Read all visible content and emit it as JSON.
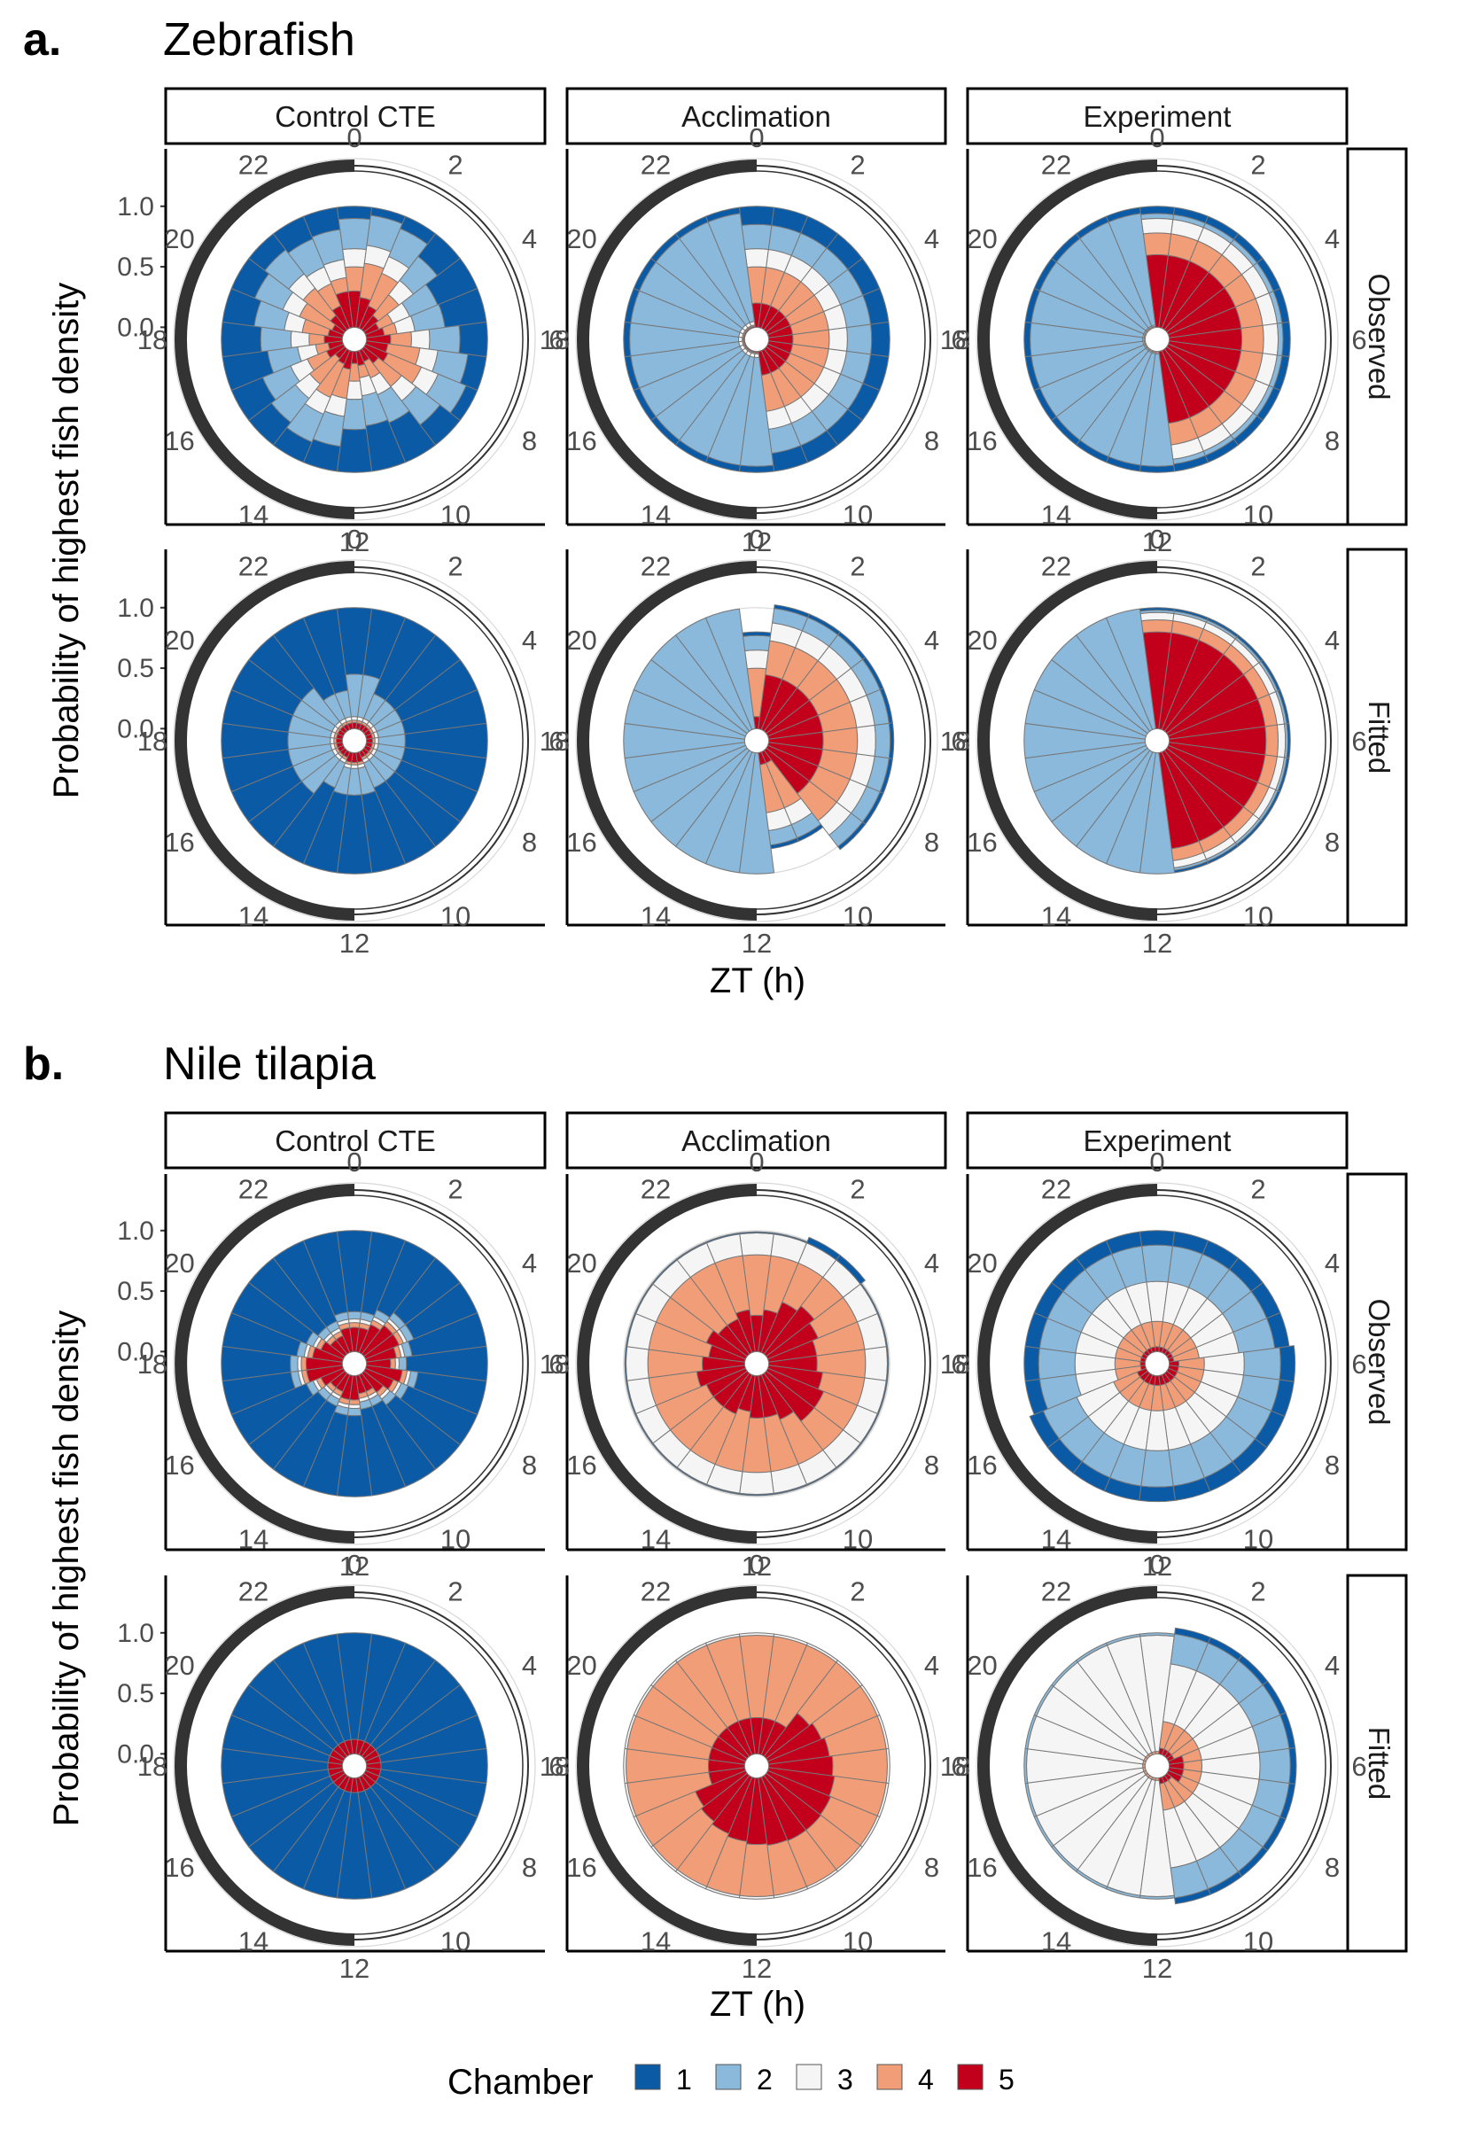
{
  "colors": {
    "chamber": [
      "#0b5aa5",
      "#8ab9db",
      "#f5f5f5",
      "#f19e78",
      "#c3001b"
    ],
    "frame": "#000000",
    "light_dark_band": "#333333",
    "grid": "#d8d8d8"
  },
  "axis_titles": {
    "y": "Probability of highest fish density",
    "x": "ZT (h)"
  },
  "legend": {
    "title": "Chamber",
    "items": [
      "1",
      "2",
      "3",
      "4",
      "5"
    ]
  },
  "chart_data": [
    {
      "type": "polar-stacked-bar",
      "panel": "a.",
      "title": "Zebrafish",
      "columns": [
        "Control CTE",
        "Acclimation",
        "Experiment"
      ],
      "rows": [
        "Observed",
        "Fitted"
      ],
      "theta_ticks": [
        "0",
        "2",
        "4",
        "6",
        "8",
        "10",
        "12",
        "14",
        "16",
        "18",
        "20",
        "22"
      ],
      "r_ticks": [
        "1.0",
        "0.5",
        "0.0"
      ],
      "ylim": [
        -0.1,
        1.35
      ],
      "grid": true,
      "legend_position": "bottom",
      "photoperiod": {
        "light": [
          0,
          12
        ],
        "dark": [
          12,
          24
        ]
      },
      "series_by_chamber": [
        "1",
        "2",
        "3",
        "4",
        "5"
      ]
    },
    {
      "type": "polar-stacked-bar",
      "panel": "b.",
      "title": "Nile tilapia",
      "columns": [
        "Control CTE",
        "Acclimation",
        "Experiment"
      ],
      "rows": [
        "Observed",
        "Fitted"
      ],
      "theta_ticks": [
        "0",
        "2",
        "4",
        "6",
        "8",
        "10",
        "12",
        "14",
        "16",
        "18",
        "20",
        "22"
      ],
      "r_ticks": [
        "1.0",
        "0.5",
        "0.0"
      ],
      "ylim": [
        -0.1,
        1.35
      ],
      "grid": true,
      "legend_position": "bottom",
      "photoperiod": {
        "light": [
          0,
          12
        ],
        "dark": [
          12,
          24
        ]
      },
      "series_by_chamber": [
        "1",
        "2",
        "3",
        "4",
        "5"
      ]
    }
  ]
}
